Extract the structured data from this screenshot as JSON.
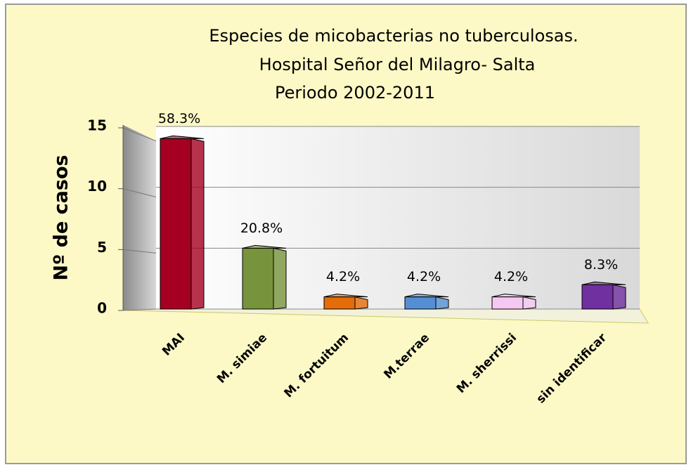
{
  "chart_data": {
    "type": "bar3d",
    "title": [
      "Especies de micobacterias no tuberculosas.",
      "Hospital Señor del Milagro- Salta",
      "Periodo 2002-2011"
    ],
    "y_label": "Nº de casos",
    "categories": [
      "MAI",
      "M. simiae",
      "M. fortuitum",
      "M.terrae",
      "M. sherrissi",
      "sin identificar"
    ],
    "values": [
      14,
      5,
      1,
      1,
      1,
      2
    ],
    "value_labels": [
      "58.3%",
      "20.8%",
      "4.2%",
      "4.2%",
      "4.2%",
      "8.3%"
    ],
    "colors": [
      "#a50021",
      "#77933c",
      "#e46c0a",
      "#558ed5",
      "#f5c8f2",
      "#7030a0"
    ],
    "ylim": [
      0,
      15
    ],
    "yticks": [
      0,
      5,
      10,
      15
    ],
    "grid": true
  }
}
